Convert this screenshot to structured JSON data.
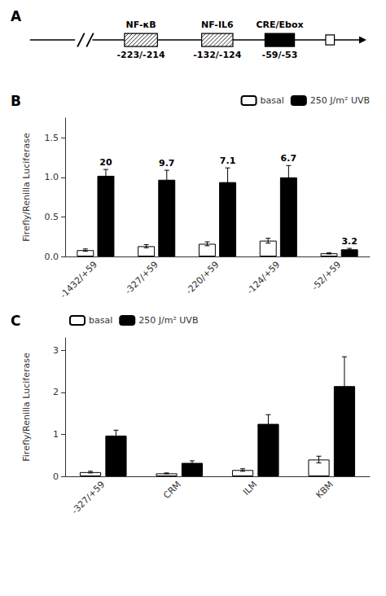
{
  "chart_data": [
    {
      "type": "diagram",
      "title": "A",
      "categories": [
        "NF-κB",
        "NF-IL6",
        "CRE/Ebox"
      ],
      "annotations": [
        "-223/-214",
        "-132/-124",
        "-59/-53"
      ],
      "colors": [
        "white",
        "white",
        "black"
      ]
    },
    {
      "type": "bar",
      "title": "B",
      "categories": [
        "-1432/+59",
        "-327/+59",
        "-220/+59",
        "-124/+59",
        "-52/+59"
      ],
      "ylabel": "Firefly/Renilla Luciferase",
      "series": [
        {
          "name": "basal",
          "color": "white",
          "values": [
            0.08,
            0.13,
            0.16,
            0.2,
            0.04
          ],
          "errors": [
            0.015,
            0.02,
            0.025,
            0.03,
            0.008
          ]
        },
        {
          "name": "250 J/m² UVB",
          "color": "black",
          "values": [
            1.02,
            0.97,
            0.94,
            1.0,
            0.09
          ],
          "errors": [
            0.08,
            0.12,
            0.18,
            0.15,
            0.012
          ],
          "annotations": [
            "20",
            "9.7",
            "7.1",
            "6.7",
            "3.2"
          ]
        }
      ],
      "ylim": [
        0,
        1.75
      ],
      "yticks": [
        {
          "value": 0,
          "label": "0.0"
        },
        0.5,
        {
          "value": 1,
          "label": "1.0"
        },
        1.5
      ],
      "legend": "upper right",
      "grid": false
    },
    {
      "type": "bar",
      "title": "C",
      "categories": [
        "-327/+59",
        "CRM",
        "ILM",
        "KBM"
      ],
      "ylabel": "Firefly/Renilla Luciferase",
      "series": [
        {
          "name": "basal",
          "color": "white",
          "values": [
            0.1,
            0.07,
            0.15,
            0.4
          ],
          "errors": [
            0.02,
            0.01,
            0.03,
            0.08
          ]
        },
        {
          "name": "250 J/m² UVB",
          "color": "black",
          "values": [
            0.97,
            0.32,
            1.25,
            2.15
          ],
          "errors": [
            0.13,
            0.05,
            0.22,
            0.7
          ]
        }
      ],
      "ylim": [
        0,
        3.3
      ],
      "yticks": [
        0,
        1,
        2,
        3
      ],
      "legend": "upper left",
      "grid": false
    }
  ]
}
